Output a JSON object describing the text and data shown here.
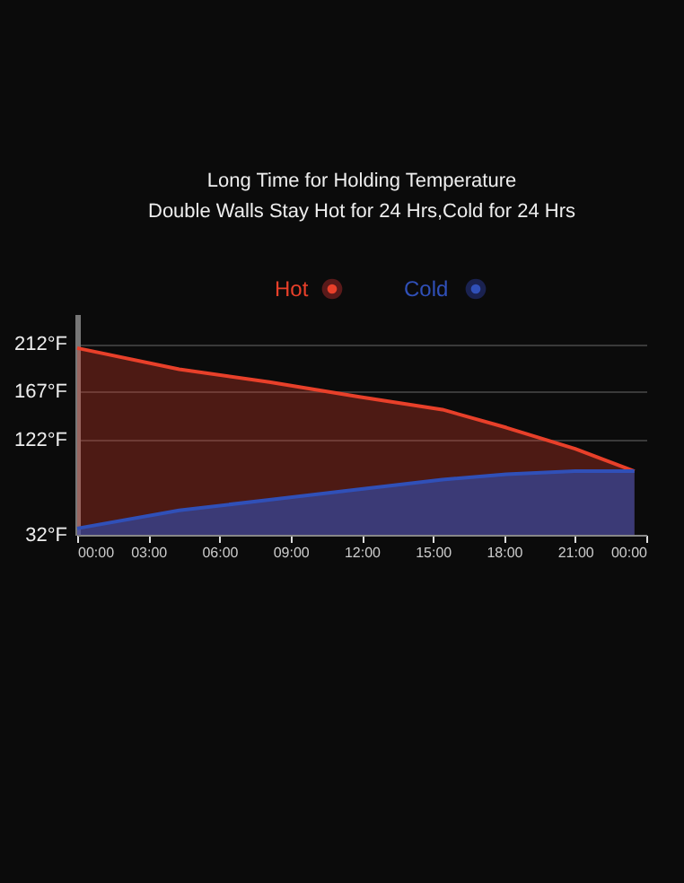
{
  "chart_data": {
    "type": "area",
    "title": "Long Time for Holding Temperature",
    "subtitle": "Double Walls Stay Hot for 24 Hrs,Cold for 24 Hrs",
    "x": [
      0,
      4.3,
      8.1,
      11.9,
      15.4,
      18.1,
      21,
      23.5
    ],
    "series": [
      {
        "name": "Hot",
        "color": "#e8402a",
        "values": [
          208,
          188,
          176,
          162,
          150,
          133,
          113,
          92
        ]
      },
      {
        "name": "Cold",
        "color": "#3050b8",
        "values": [
          38,
          55,
          65,
          75,
          84,
          89,
          92,
          92
        ]
      }
    ],
    "xlim": [
      0,
      24
    ],
    "xticks": [
      {
        "value": 0,
        "label": "00:00"
      },
      {
        "value": 3,
        "label": "03:00"
      },
      {
        "value": 6,
        "label": "06:00"
      },
      {
        "value": 9,
        "label": "09:00"
      },
      {
        "value": 12,
        "label": "12:00"
      },
      {
        "value": 15,
        "label": "15:00"
      },
      {
        "value": 18,
        "label": "18:00"
      },
      {
        "value": 21,
        "label": "21:00"
      },
      {
        "value": 24,
        "label": "00:00"
      }
    ],
    "ylim": [
      32,
      240
    ],
    "yticks": [
      {
        "value": 32,
        "label": "32°F"
      },
      {
        "value": 122,
        "label": "122°F"
      },
      {
        "value": 167,
        "label": "167°F"
      },
      {
        "value": 212,
        "label": "212°F"
      }
    ],
    "grid": "y",
    "legend": "top"
  }
}
